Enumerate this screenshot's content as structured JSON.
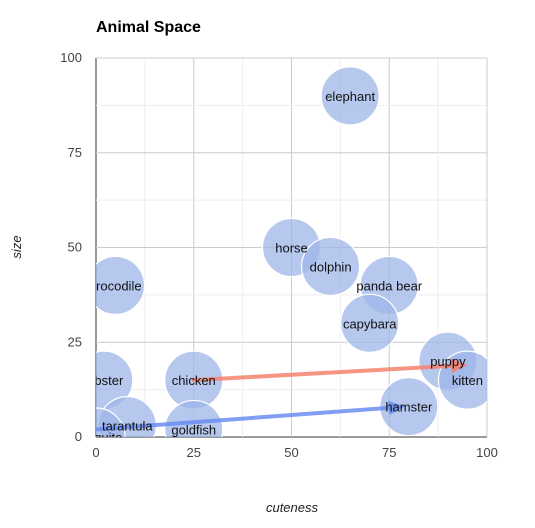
{
  "chart_data": {
    "type": "scatter",
    "title": "Animal Space",
    "xlabel": "cuteness",
    "ylabel": "size",
    "xlim": [
      0,
      100
    ],
    "ylim": [
      0,
      100
    ],
    "xticks": [
      "0",
      "25",
      "50",
      "75",
      "100"
    ],
    "yticks": [
      "0",
      "25",
      "50",
      "75",
      "100"
    ],
    "grid": true,
    "point_color": "#9db5e8",
    "points": [
      {
        "label": "elephant",
        "x": 65,
        "y": 90
      },
      {
        "label": "horse",
        "x": 50,
        "y": 50
      },
      {
        "label": "dolphin",
        "x": 60,
        "y": 45
      },
      {
        "label": "panda bear",
        "x": 75,
        "y": 40
      },
      {
        "label": "capybara",
        "x": 70,
        "y": 30
      },
      {
        "label": "crocodile",
        "x": 5,
        "y": 40
      },
      {
        "label": "lobster",
        "x": 2,
        "y": 15
      },
      {
        "label": "chicken",
        "x": 25,
        "y": 15
      },
      {
        "label": "puppy",
        "x": 90,
        "y": 20
      },
      {
        "label": "kitten",
        "x": 95,
        "y": 15
      },
      {
        "label": "hamster",
        "x": 80,
        "y": 8
      },
      {
        "label": "tarantula",
        "x": 8,
        "y": 3
      },
      {
        "label": "mosquito",
        "x": 0,
        "y": 0
      },
      {
        "label": "goldfish",
        "x": 25,
        "y": 2
      }
    ],
    "arrows": [
      {
        "from": [
          25,
          15
        ],
        "to": [
          95,
          19
        ],
        "color": "#f4826e"
      },
      {
        "from": [
          0,
          2
        ],
        "to": [
          79,
          8
        ],
        "color": "#6b8df2"
      }
    ]
  }
}
